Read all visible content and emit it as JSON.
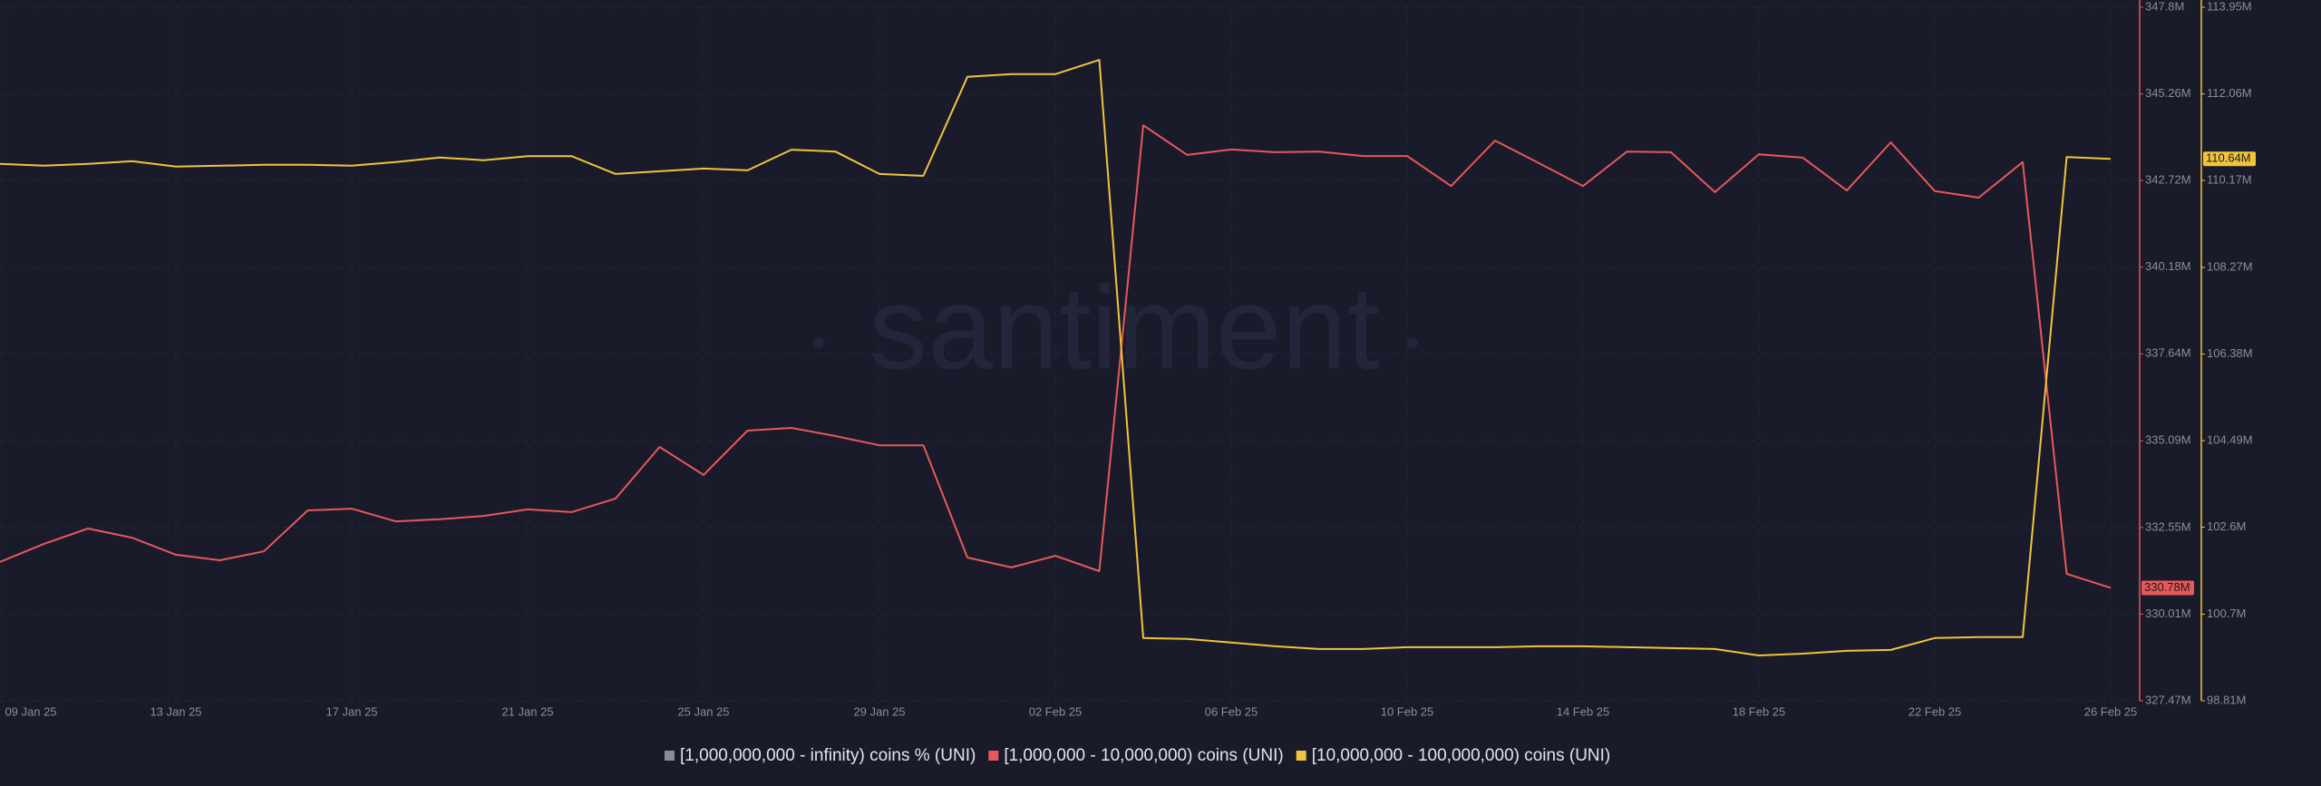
{
  "chart_data": {
    "type": "line",
    "watermark": "santiment",
    "categories": [
      "09 Jan 25",
      null,
      null,
      null,
      "13 Jan 25",
      null,
      null,
      null,
      "17 Jan 25",
      null,
      null,
      null,
      "21 Jan 25",
      null,
      null,
      null,
      "25 Jan 25",
      null,
      null,
      null,
      "29 Jan 25",
      null,
      null,
      null,
      "02 Feb 25",
      null,
      null,
      null,
      "06 Feb 25",
      null,
      null,
      null,
      "10 Feb 25",
      null,
      null,
      null,
      "14 Feb 25",
      null,
      null,
      null,
      "18 Feb 25",
      null,
      null,
      null,
      "22 Feb 25",
      null,
      null,
      null,
      "26 Feb 25"
    ],
    "series": [
      {
        "name": "[1,000,000,000 - infinity) coins % (UNI)",
        "color": "#8a8d99",
        "values": [
          null,
          null,
          null,
          null,
          null,
          null,
          null,
          null,
          null,
          null,
          null,
          null,
          null,
          null,
          null,
          null,
          null,
          null,
          null,
          null,
          null,
          null,
          null,
          null,
          null,
          null,
          null,
          null,
          null,
          null,
          null,
          null,
          null,
          null,
          null,
          null,
          null,
          null,
          null,
          null,
          null,
          null,
          null,
          null,
          null,
          null,
          null,
          null,
          null
        ]
      },
      {
        "name": "[1,000,000 - 10,000,000) coins (UNI)",
        "color": "#e8585a",
        "axis": "y",
        "last_label": "330.78M",
        "values": [
          331.54,
          332.07,
          332.52,
          332.25,
          331.75,
          331.59,
          331.85,
          333.05,
          333.1,
          332.73,
          332.79,
          332.89,
          333.08,
          333.0,
          333.4,
          334.91,
          334.09,
          335.39,
          335.47,
          335.23,
          334.96,
          334.96,
          331.67,
          331.38,
          331.72,
          331.27,
          344.34,
          343.47,
          343.63,
          343.55,
          343.57,
          343.44,
          343.44,
          342.56,
          343.89,
          343.23,
          342.56,
          343.57,
          343.55,
          342.38,
          343.49,
          343.39,
          342.43,
          343.84,
          342.41,
          342.22,
          343.26,
          331.19,
          330.78
        ]
      },
      {
        "name": "[10,000,000 - 100,000,000) coins (UNI)",
        "color": "#f0c43c",
        "axis": "y2",
        "last_label": "110.64M",
        "values": [
          110.53,
          110.49,
          110.53,
          110.59,
          110.47,
          110.49,
          110.51,
          110.51,
          110.49,
          110.57,
          110.67,
          110.61,
          110.7,
          110.7,
          110.31,
          110.37,
          110.43,
          110.39,
          110.84,
          110.8,
          110.31,
          110.27,
          112.43,
          112.49,
          112.49,
          112.8,
          100.18,
          100.16,
          100.08,
          100.0,
          99.94,
          99.94,
          99.98,
          99.98,
          99.98,
          100.0,
          100.0,
          99.98,
          99.96,
          99.94,
          99.8,
          99.84,
          99.9,
          99.92,
          100.18,
          100.2,
          100.2,
          110.68,
          110.64
        ]
      }
    ],
    "ylim": [
      327.47,
      347.8
    ],
    "yticks": [
      {
        "value": 347.8,
        "label": "347.8M"
      },
      {
        "value": 345.26,
        "label": "345.26M"
      },
      {
        "value": 342.72,
        "label": "342.72M"
      },
      {
        "value": 340.18,
        "label": "340.18M"
      },
      {
        "value": 337.64,
        "label": "337.64M"
      },
      {
        "value": 335.09,
        "label": "335.09M"
      },
      {
        "value": 332.55,
        "label": "332.55M"
      },
      {
        "value": 330.01,
        "label": "330.01M"
      },
      {
        "value": 327.47,
        "label": "327.47M"
      }
    ],
    "y2lim": [
      98.81,
      113.95
    ],
    "y2ticks": [
      {
        "value": 113.95,
        "label": "113.95M"
      },
      {
        "value": 112.06,
        "label": "112.06M"
      },
      {
        "value": 110.17,
        "label": "110.17M"
      },
      {
        "value": 108.27,
        "label": "108.27M"
      },
      {
        "value": 106.38,
        "label": "106.38M"
      },
      {
        "value": 104.49,
        "label": "104.49M"
      },
      {
        "value": 102.6,
        "label": "102.6M"
      },
      {
        "value": 100.7,
        "label": "100.7M"
      },
      {
        "value": 98.81,
        "label": "98.81M"
      }
    ],
    "grid": true
  }
}
